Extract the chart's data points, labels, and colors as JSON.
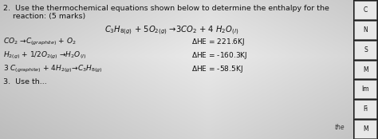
{
  "bg_color": "#c8c8c8",
  "text_color": "#111111",
  "title_num": "2.",
  "title_text": " Use the thermochemical equations shown below to determine the enthalpy for the",
  "title_line2": "    reaction: (5 marks)",
  "main_eq_left": "C",
  "fs_title": 6.8,
  "fs_eq": 6.5,
  "fs_main": 7.2,
  "right_strip_labels": [
    "C",
    "N",
    "S",
    "M",
    "Im",
    "Fi",
    "M"
  ],
  "bottom_text": "3.  Use th..."
}
